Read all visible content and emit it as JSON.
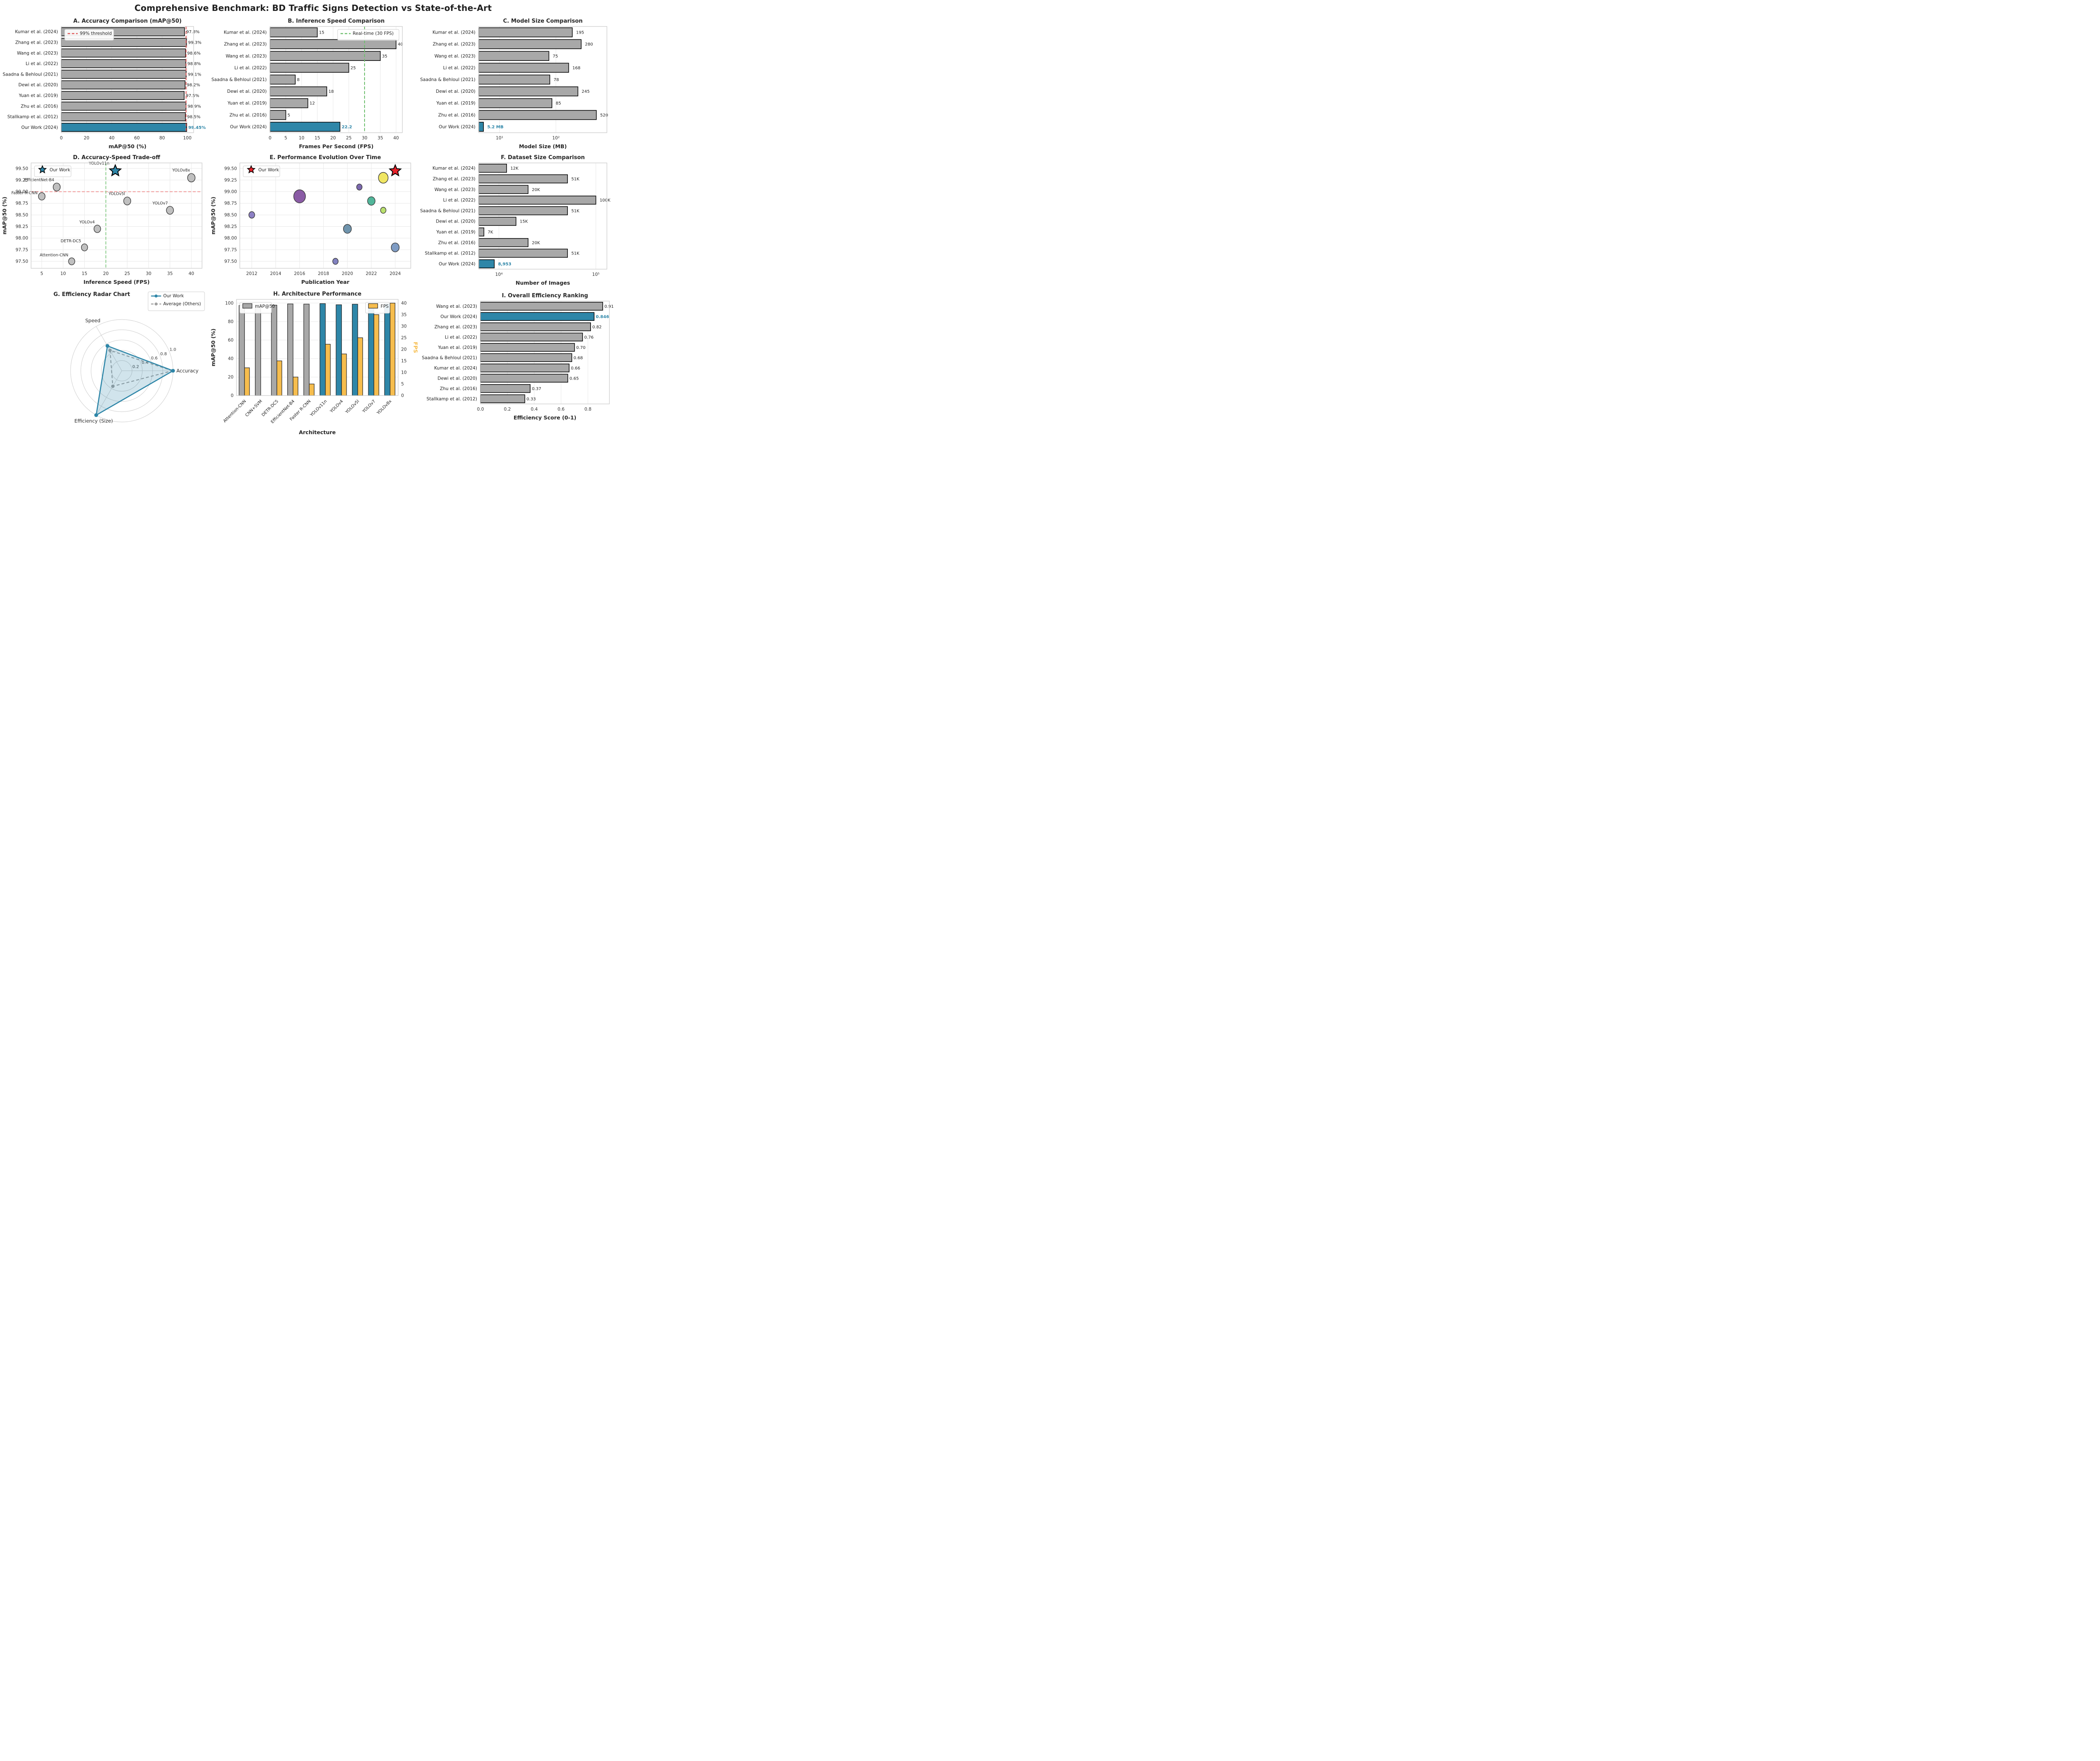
{
  "title": "Comprehensive Benchmark: BD Traffic Signs Detection vs State-of-the-Art",
  "colors": {
    "blue": "#2e86a8",
    "gray": "#a8a8a8",
    "orange": "#f6bd4e",
    "bar_edge": "#000000",
    "frame": "#c9c9c9",
    "grid": "#e8e8e8",
    "text": "#262626",
    "tick": "#333333",
    "red_dash": "#e05c5c",
    "pale_red_dash": "#f09a9a",
    "green_dash": "#6dbf6d",
    "pale_green_dash": "#8ecf8e",
    "radar_gray": "#a0a0a0",
    "radar_fill": "rgba(46,134,168,0.22)",
    "red_star": "#e8212a",
    "scatter_gray": "#c0c0c0"
  },
  "chart_data": [
    {
      "panel": "A",
      "type": "hbar",
      "title": "A. Accuracy Comparison (mAP@50)",
      "xlabel": "mAP@50 (%)",
      "categories": [
        "Kumar et al. (2024)",
        "Zhang et al. (2023)",
        "Wang et al. (2023)",
        "Li et al. (2022)",
        "Saadna & Behloul (2021)",
        "Dewi et al. (2020)",
        "Yuan et al. (2019)",
        "Zhu et al. (2016)",
        "Stallkamp et al. (2012)",
        "Our Work (2024)"
      ],
      "values": [
        97.8,
        99.3,
        98.6,
        98.8,
        99.1,
        98.2,
        97.5,
        98.9,
        98.5,
        99.45
      ],
      "value_labels": [
        "97.8%",
        "99.3%",
        "98.6%",
        "98.8%",
        "99.1%",
        "98.2%",
        "97.5%",
        "98.9%",
        "98.5%",
        "99.45%"
      ],
      "highlight_index": 9,
      "xlim": [
        0,
        105
      ],
      "xticks": [
        0,
        20,
        40,
        60,
        80,
        100
      ],
      "xtick_labels": [
        "0",
        "20",
        "40",
        "60",
        "80",
        "100"
      ],
      "refline": {
        "value": 99,
        "color_key": "red_dash",
        "label": "99% threshold",
        "legend_pos": "top-left"
      }
    },
    {
      "panel": "B",
      "type": "hbar",
      "title": "B. Inference Speed Comparison",
      "xlabel": "Frames Per Second (FPS)",
      "categories": [
        "Kumar et al. (2024)",
        "Zhang et al. (2023)",
        "Wang et al. (2023)",
        "Li et al. (2022)",
        "Saadna & Behloul (2021)",
        "Dewi et al. (2020)",
        "Yuan et al. (2019)",
        "Zhu et al. (2016)",
        "Our Work (2024)"
      ],
      "values": [
        15,
        40,
        35,
        25,
        8,
        18,
        12,
        5,
        22.2
      ],
      "value_labels": [
        "15",
        "40",
        "35",
        "25",
        "8",
        "18",
        "12",
        "5",
        "22.2"
      ],
      "highlight_index": 8,
      "xlim": [
        0,
        42
      ],
      "xticks": [
        0,
        5,
        10,
        15,
        20,
        25,
        30,
        35,
        40
      ],
      "xtick_labels": [
        "0",
        "5",
        "10",
        "15",
        "20",
        "25",
        "30",
        "35",
        "40"
      ],
      "refline": {
        "value": 30,
        "color_key": "green_dash",
        "label": "Real-time (30 FPS)",
        "legend_pos": "top-right"
      }
    },
    {
      "panel": "C",
      "type": "hbar",
      "scale": "log",
      "title": "C. Model Size Comparison",
      "xlabel": "Model Size (MB)",
      "categories": [
        "Kumar et al. (2024)",
        "Zhang et al. (2023)",
        "Wang et al. (2023)",
        "Li et al. (2022)",
        "Saadna & Behloul (2021)",
        "Dewi et al. (2020)",
        "Yuan et al. (2019)",
        "Zhu et al. (2016)",
        "Our Work (2024)"
      ],
      "values": [
        195,
        280,
        75,
        168,
        78,
        245,
        85,
        520,
        5.2
      ],
      "value_labels": [
        "195",
        "280",
        "75",
        "168",
        "78",
        "245",
        "85",
        "520",
        "5.2 MB"
      ],
      "highlight_index": 8,
      "xlim": [
        4.3,
        800
      ],
      "xticks": [
        10,
        100
      ],
      "xtick_labels": [
        "10¹",
        "10²"
      ]
    },
    {
      "panel": "D",
      "type": "scatter",
      "title": "D. Accuracy-Speed Trade-off",
      "xlabel": "Inference Speed (FPS)",
      "ylabel": "mAP@50 (%)",
      "xlim": [
        2.5,
        42.5
      ],
      "xticks": [
        5,
        10,
        15,
        20,
        25,
        30,
        35,
        40
      ],
      "xtick_labels": [
        "5",
        "10",
        "15",
        "20",
        "25",
        "30",
        "35",
        "40"
      ],
      "ylim": [
        97.35,
        99.62
      ],
      "yticks": [
        97.5,
        97.75,
        98.0,
        98.25,
        98.5,
        98.75,
        99.0,
        99.25,
        99.5
      ],
      "ytick_labels": [
        "97.50",
        "97.75",
        "98.00",
        "98.25",
        "98.50",
        "98.75",
        "99.00",
        "99.25",
        "99.50"
      ],
      "points": [
        {
          "label": "Attention-CNN",
          "x": 12,
          "y": 97.5,
          "r": 7.5,
          "lx": -8,
          "ly": -12
        },
        {
          "label": "DETR-DC5",
          "x": 15,
          "y": 97.8,
          "r": 7.5,
          "lx": -8,
          "ly": -12
        },
        {
          "label": "YOLOv4",
          "x": 18,
          "y": 98.2,
          "r": 8,
          "lx": -6,
          "ly": -13
        },
        {
          "label": "YOLOv5l",
          "x": 25,
          "y": 98.8,
          "r": 8.5,
          "lx": -5,
          "ly": -14
        },
        {
          "label": "YOLOv7",
          "x": 35,
          "y": 98.6,
          "r": 8.5,
          "lx": -5,
          "ly": -14
        },
        {
          "label": "YOLOv8x",
          "x": 40,
          "y": 99.3,
          "r": 9,
          "lx": -3,
          "ly": -15
        },
        {
          "label": "EfficientNet-B4",
          "x": 8.5,
          "y": 99.1,
          "r": 8.5,
          "lx": -6,
          "ly": -14
        },
        {
          "label": "Faster R-CNN",
          "x": 5,
          "y": 98.9,
          "r": 8,
          "lx": -10,
          "ly": -5
        }
      ],
      "star": {
        "label": "YOLOv11n",
        "x": 22.2,
        "y": 99.45,
        "color_key": "blue",
        "lx": -14,
        "ly": -15
      },
      "hline": {
        "value": 99.0,
        "color_key": "pale_red_dash"
      },
      "vline": {
        "value": 20,
        "color_key": "pale_green_dash"
      },
      "legend": {
        "text": "Our Work",
        "marker": "star",
        "color_key": "blue",
        "pos": "top-left"
      }
    },
    {
      "panel": "E",
      "type": "scatter",
      "title": "E. Performance Evolution Over Time",
      "xlabel": "Publication Year",
      "ylabel": "mAP@50 (%)",
      "xlim": [
        2011,
        2025.3
      ],
      "xticks": [
        2012,
        2014,
        2016,
        2018,
        2020,
        2022,
        2024
      ],
      "xtick_labels": [
        "2012",
        "2014",
        "2016",
        "2018",
        "2020",
        "2022",
        "2024"
      ],
      "ylim": [
        97.35,
        99.62
      ],
      "yticks": [
        97.5,
        97.75,
        98.0,
        98.25,
        98.5,
        98.75,
        99.0,
        99.25,
        99.5
      ],
      "ytick_labels": [
        "97.50",
        "97.75",
        "98.00",
        "98.25",
        "98.50",
        "98.75",
        "99.00",
        "99.25",
        "99.50"
      ],
      "points": [
        {
          "x": 2012,
          "y": 98.5,
          "r": 7,
          "color": "#8d80c4"
        },
        {
          "x": 2016,
          "y": 98.9,
          "r": 14,
          "color": "#8a5ba5"
        },
        {
          "x": 2019,
          "y": 97.5,
          "r": 6.5,
          "color": "#8282c0"
        },
        {
          "x": 2020,
          "y": 98.2,
          "r": 9.5,
          "color": "#6f94ad"
        },
        {
          "x": 2021,
          "y": 99.1,
          "r": 6.5,
          "color": "#7b68ae"
        },
        {
          "x": 2022,
          "y": 98.8,
          "r": 9,
          "color": "#52b69a"
        },
        {
          "x": 2023,
          "y": 99.3,
          "r": 11.5,
          "color": "#f0e663"
        },
        {
          "x": 2023,
          "y": 98.6,
          "r": 6.5,
          "color": "#b9e06d"
        },
        {
          "x": 2024,
          "y": 97.8,
          "r": 9.5,
          "color": "#7f9cc4"
        }
      ],
      "star": {
        "x": 2024,
        "y": 99.45,
        "color_key": "red_star"
      },
      "legend": {
        "text": "Our Work",
        "marker": "star",
        "color_key": "red_star",
        "pos": "top-left"
      }
    },
    {
      "panel": "F",
      "type": "hbar",
      "scale": "log",
      "title": "F. Dataset Size Comparison",
      "xlabel": "Number of Images",
      "categories": [
        "Kumar et al. (2024)",
        "Zhang et al. (2023)",
        "Wang et al. (2023)",
        "Li et al. (2022)",
        "Saadna & Behloul (2021)",
        "Dewi et al. (2020)",
        "Yuan et al. (2019)",
        "Zhu et al. (2016)",
        "Stallkamp et al. (2012)",
        "Our Work (2024)"
      ],
      "values": [
        12000,
        51000,
        20000,
        100000,
        51000,
        15000,
        7000,
        20000,
        51000,
        8953
      ],
      "value_labels": [
        "12K",
        "51K",
        "20K",
        "100K",
        "51K",
        "15K",
        "7K",
        "20K",
        "51K",
        "8,953"
      ],
      "highlight_index": 9,
      "xlim": [
        6200,
        130000
      ],
      "xticks": [
        10000,
        100000
      ],
      "xtick_labels": [
        "10⁴",
        "10⁵"
      ]
    },
    {
      "panel": "G",
      "type": "radar",
      "title": "G. Efficiency Radar Chart",
      "axes": [
        "Accuracy",
        "Speed",
        "Efficiency (Size)"
      ],
      "rings": [
        0.2,
        0.4,
        0.6,
        0.8,
        1.0
      ],
      "ring_labels": [
        "0.2",
        "0.4",
        "0.6",
        "0.8",
        "1.0"
      ],
      "series": [
        {
          "name": "Our Work",
          "values": [
            1.0,
            0.56,
            1.0
          ],
          "color_key": "blue",
          "dash": false,
          "fill": true
        },
        {
          "name": "Average (Others)",
          "values": [
            0.99,
            0.46,
            0.35
          ],
          "color_key": "radar_gray",
          "dash": true,
          "fill": false
        }
      ]
    },
    {
      "panel": "H",
      "type": "dualbar",
      "title": "H. Architecture Performance",
      "xlabel": "Architecture",
      "ylabel_left": "mAP@50 (%)",
      "ylabel_right": "FPS",
      "categories": [
        "Attention-CNN",
        "CNN+SVM",
        "DETR-DC5",
        "EfficientNet-B4",
        "Faster R-CNN",
        "YOLOv11n",
        "YOLOv4",
        "YOLOv5l",
        "YOLOv7",
        "YOLOv8x"
      ],
      "map_values": [
        97.5,
        98.5,
        97.8,
        99.1,
        98.9,
        99.45,
        98.2,
        98.8,
        98.6,
        99.3
      ],
      "is_yolo": [
        false,
        false,
        false,
        false,
        false,
        true,
        true,
        true,
        true,
        true
      ],
      "fps_values": [
        12,
        0,
        15,
        8,
        5,
        22.2,
        18,
        25,
        35,
        40
      ],
      "ylim_left": [
        0,
        104
      ],
      "yticks_left": [
        0,
        20,
        40,
        60,
        80,
        100
      ],
      "ytick_left_labels": [
        "0",
        "20",
        "40",
        "60",
        "80",
        "100"
      ],
      "ylim_right": [
        0,
        41.6
      ],
      "yticks_right": [
        0,
        5,
        10,
        15,
        20,
        25,
        30,
        35,
        40
      ],
      "ytick_right_labels": [
        "0",
        "5",
        "10",
        "15",
        "20",
        "25",
        "30",
        "35",
        "40"
      ],
      "legend_left": "mAP@50",
      "legend_right": "FPS"
    },
    {
      "panel": "I",
      "type": "hbar",
      "title": "I. Overall Efficiency Ranking",
      "xlabel": "Efficiency Score (0-1)",
      "categories": [
        "Wang et al. (2023)",
        "Our Work (2024)",
        "Zhang et al. (2023)",
        "Li et al. (2022)",
        "Yuan et al. (2019)",
        "Saadna & Behloul (2021)",
        "Kumar et al. (2024)",
        "Dewi et al. (2020)",
        "Zhu et al. (2016)",
        "Stallkamp et al. (2012)"
      ],
      "values": [
        0.91,
        0.846,
        0.82,
        0.76,
        0.7,
        0.68,
        0.66,
        0.65,
        0.37,
        0.33
      ],
      "value_labels": [
        "0.91",
        "0.846",
        "0.82",
        "0.76",
        "0.70",
        "0.68",
        "0.66",
        "0.65",
        "0.37",
        "0.33"
      ],
      "highlight_index": 1,
      "xlim": [
        0,
        0.96
      ],
      "xticks": [
        0,
        0.2,
        0.4,
        0.6,
        0.8
      ],
      "xtick_labels": [
        "0.0",
        "0.2",
        "0.4",
        "0.6",
        "0.8"
      ]
    }
  ]
}
